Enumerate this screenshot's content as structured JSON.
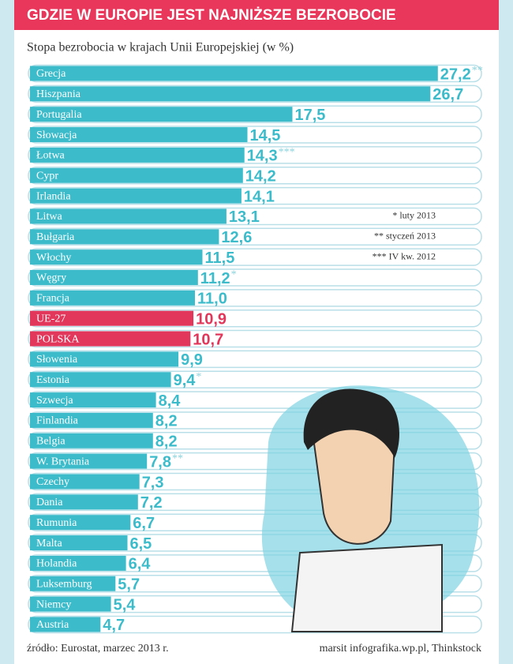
{
  "header": {
    "title": "GDZIE W EUROPIE JEST NAJNIŻSZE BEZROBOCIE"
  },
  "chart_data": {
    "type": "hbar",
    "title": "Stopa bezrobocia w krajach Unii Europejskiej (w %)",
    "categories": [
      "Grecja",
      "Hiszpania",
      "Portugalia",
      "Słowacja",
      "Łotwa",
      "Cypr",
      "Irlandia",
      "Litwa",
      "Bułgaria",
      "Włochy",
      "Węgry",
      "Francja",
      "UE-27",
      "POLSKA",
      "Słowenia",
      "Estonia",
      "Szwecja",
      "Finlandia",
      "Belgia",
      "W. Brytania",
      "Czechy",
      "Dania",
      "Rumunia",
      "Malta",
      "Holandia",
      "Luksemburg",
      "Niemcy",
      "Austria"
    ],
    "values": [
      27.2,
      26.7,
      17.5,
      14.5,
      14.3,
      14.2,
      14.1,
      13.1,
      12.6,
      11.5,
      11.2,
      11.0,
      10.9,
      10.7,
      9.9,
      9.4,
      8.4,
      8.2,
      8.2,
      7.8,
      7.3,
      7.2,
      6.7,
      6.5,
      6.4,
      5.7,
      5.4,
      4.7
    ],
    "value_labels": [
      "27,2",
      "26,7",
      "17,5",
      "14,5",
      "14,3",
      "14,2",
      "14,1",
      "13,1",
      "12,6",
      "11,5",
      "11,2",
      "11,0",
      "10,9",
      "10,7",
      "9,9",
      "9,4",
      "8,4",
      "8,2",
      "8,2",
      "7,8",
      "7,3",
      "7,2",
      "6,7",
      "6,5",
      "6,4",
      "5,7",
      "5,4",
      "4,7"
    ],
    "footnote_marks": [
      "**",
      null,
      null,
      null,
      "***",
      null,
      null,
      null,
      null,
      null,
      "*",
      null,
      null,
      null,
      null,
      "*",
      null,
      null,
      null,
      "**",
      null,
      null,
      null,
      null,
      null,
      null,
      null,
      null
    ],
    "colors": [
      "#3cbccb",
      "#3cbccb",
      "#3cbccb",
      "#3cbccb",
      "#3cbccb",
      "#3cbccb",
      "#3cbccb",
      "#3cbccb",
      "#3cbccb",
      "#3cbccb",
      "#3cbccb",
      "#3cbccb",
      "#e2365a",
      "#e2365a",
      "#3cbccb",
      "#3cbccb",
      "#3cbccb",
      "#3cbccb",
      "#3cbccb",
      "#3cbccb",
      "#3cbccb",
      "#3cbccb",
      "#3cbccb",
      "#3cbccb",
      "#3cbccb",
      "#3cbccb",
      "#3cbccb",
      "#3cbccb"
    ],
    "xlim": [
      0,
      30
    ],
    "notes": [
      "* luty 2013",
      "** styczeń 2013",
      "*** IV kw. 2012"
    ]
  },
  "footer": {
    "source": "źródło: Eurostat, marzec 2013 r.",
    "credit": "marsit infografika.wp.pl, Thinkstock"
  }
}
